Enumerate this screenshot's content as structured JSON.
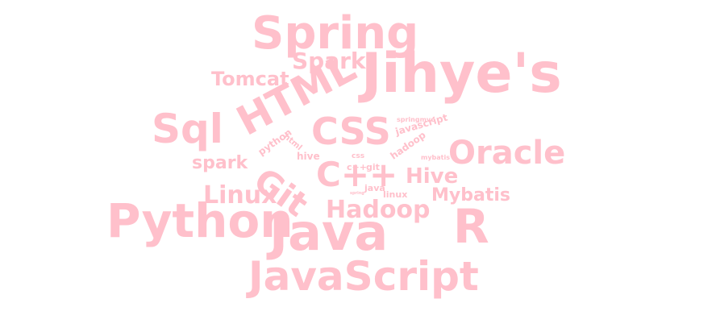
{
  "word_color": "#ffc0cb",
  "words": [
    "Spring",
    "Spark",
    "Tomcat",
    "Jihye's",
    "HTML",
    "Sql",
    "CSS",
    "javascript",
    "springmvc",
    "html",
    "python",
    "hive",
    "hadoop",
    "mybatis",
    "Oracle",
    "spark",
    "Git",
    "C++",
    "Hive",
    "css",
    "c++",
    "git",
    "java",
    "linux",
    "spring",
    "Linux",
    "Mybatis",
    "Python",
    "Hadoop",
    "Java",
    "R",
    "JavaScript"
  ]
}
